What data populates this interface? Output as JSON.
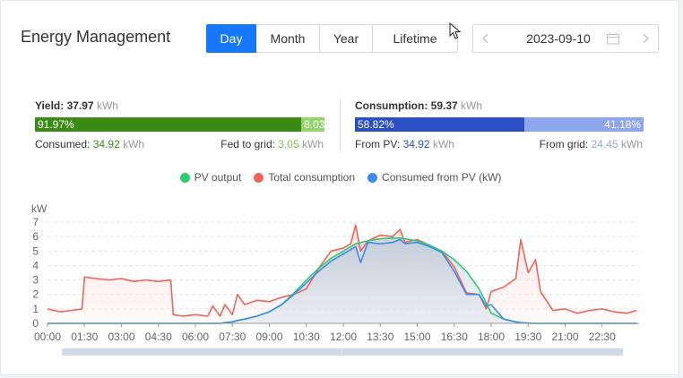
{
  "header": {
    "title": "Energy Management"
  },
  "tabs": [
    {
      "label": "Day",
      "active": true
    },
    {
      "label": "Month",
      "active": false
    },
    {
      "label": "Year",
      "active": false
    },
    {
      "label": "Lifetime",
      "active": false
    }
  ],
  "date_picker": {
    "value": "2023-09-10",
    "prev_icon": "chevron-left-icon",
    "next_icon": "chevron-right-icon",
    "calendar_icon": "calendar-icon"
  },
  "yield": {
    "label": "Yield:",
    "value": "37.97",
    "unit": "kWh",
    "bar_left_pct": "91.97%",
    "bar_right_pct": "8.03%",
    "bar_left_fraction": 0.9197,
    "consumed_label": "Consumed:",
    "consumed_value": "34.92",
    "consumed_unit": "kWh",
    "fed_label": "Fed to grid:",
    "fed_value": "3.05",
    "fed_unit": "kWh"
  },
  "consumption": {
    "label": "Consumption:",
    "value": "59.37",
    "unit": "kWh",
    "bar_left_pct": "58.82%",
    "bar_right_pct": "41.18%",
    "bar_left_fraction": 0.5882,
    "from_pv_label": "From PV:",
    "from_pv_value": "34.92",
    "from_pv_unit": "kWh",
    "from_grid_label": "From grid:",
    "from_grid_value": "24.45",
    "from_grid_unit": "kWh"
  },
  "colors": {
    "accent": "#1677ff",
    "yield_dark": "#3a8a16",
    "yield_light": "#95d46a",
    "cons_dark": "#2b4fc4",
    "cons_light": "#8ea6f0",
    "pv": "#2ecc71",
    "total": "#f0655a",
    "consumed_pv": "#3d8de8"
  },
  "chart_data": {
    "type": "line",
    "title": "",
    "ylabel": "kW",
    "ylim": [
      0,
      7
    ],
    "yticks": [
      "0",
      "1",
      "2",
      "3",
      "4",
      "5",
      "6",
      "7"
    ],
    "xticks": [
      "00:00",
      "01:30",
      "03:00",
      "04:30",
      "06:00",
      "07:30",
      "09:00",
      "10:30",
      "12:00",
      "13:30",
      "15:00",
      "16:30",
      "18:00",
      "19:30",
      "21:00",
      "22:30"
    ],
    "x_hours": [
      0,
      0.5,
      1,
      1.4,
      1.5,
      2,
      2.5,
      3,
      3.5,
      4,
      4.5,
      5,
      5.1,
      5.5,
      6,
      6.5,
      6.7,
      7,
      7.2,
      7.5,
      7.7,
      8,
      8.5,
      9,
      9.5,
      10,
      10.5,
      11,
      11.5,
      12,
      12.3,
      12.5,
      12.7,
      13,
      13.5,
      14,
      14.3,
      14.5,
      15,
      15.5,
      16,
      16.5,
      17,
      17.5,
      17.8,
      18,
      18.5,
      19,
      19.2,
      19.5,
      19.8,
      20,
      20.5,
      21,
      21.5,
      22,
      22.5,
      23,
      23.5,
      23.9
    ],
    "series": [
      {
        "name": "PV output",
        "color": "#2ecc71",
        "values": [
          0,
          0,
          0,
          0,
          0,
          0,
          0,
          0,
          0,
          0,
          0,
          0,
          0,
          0,
          0,
          0,
          0,
          0,
          0.05,
          0.1,
          0.2,
          0.3,
          0.5,
          0.8,
          1.3,
          2.1,
          3.0,
          3.8,
          4.5,
          5.0,
          5.3,
          5.5,
          5.6,
          5.7,
          5.85,
          5.9,
          5.9,
          5.85,
          5.7,
          5.4,
          5.0,
          4.4,
          3.6,
          2.4,
          1.4,
          0.7,
          0.3,
          0.1,
          0.05,
          0.02,
          0,
          0,
          0,
          0,
          0,
          0,
          0,
          0,
          0,
          0
        ]
      },
      {
        "name": "Total consumption",
        "color": "#f0655a",
        "values": [
          1.0,
          0.8,
          0.9,
          1.0,
          3.2,
          3.1,
          3.0,
          3.1,
          2.9,
          3.0,
          2.9,
          3.0,
          0.6,
          0.5,
          0.6,
          0.5,
          1.2,
          0.5,
          1.3,
          0.6,
          2.0,
          1.3,
          1.6,
          1.5,
          1.8,
          2.0,
          2.4,
          3.8,
          5.0,
          5.2,
          5.5,
          6.8,
          5.0,
          5.7,
          6.1,
          6.0,
          6.5,
          5.6,
          5.8,
          5.4,
          5.0,
          3.9,
          2.1,
          2.0,
          1.0,
          2.2,
          2.5,
          3.1,
          5.8,
          3.5,
          4.4,
          2.2,
          0.9,
          1.0,
          0.7,
          0.9,
          1.0,
          0.8,
          0.7,
          0.9
        ]
      },
      {
        "name": "Consumed from PV (kW)",
        "color": "#3d8de8",
        "values": [
          0,
          0,
          0,
          0,
          0,
          0,
          0,
          0,
          0,
          0,
          0,
          0,
          0,
          0,
          0,
          0,
          0,
          0,
          0.05,
          0.1,
          0.2,
          0.3,
          0.5,
          0.8,
          1.3,
          2.0,
          2.8,
          3.6,
          4.3,
          4.8,
          5.1,
          5.3,
          4.2,
          5.6,
          5.5,
          5.6,
          5.8,
          5.5,
          5.6,
          5.3,
          4.9,
          3.6,
          2.0,
          2.0,
          1.2,
          1.3,
          0.3,
          0.1,
          0.05,
          0.02,
          0,
          0,
          0,
          0,
          0,
          0,
          0,
          0,
          0,
          0
        ]
      }
    ]
  }
}
